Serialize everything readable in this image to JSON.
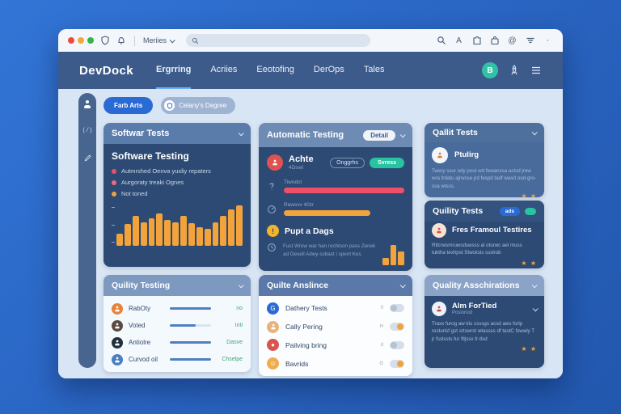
{
  "colors": {
    "accent_blue": "#2a6ad4",
    "teal": "#28c3a0",
    "orange": "#f2a33c",
    "red": "#ef5068",
    "green": "#3fa573",
    "navy_card": "#2d4a74"
  },
  "browser": {
    "menu_label": "Meriies",
    "search_placeholder": ""
  },
  "nav": {
    "logo": "DevDock",
    "tabs": [
      {
        "label": "Ergrring",
        "active": true
      },
      {
        "label": "Acriies",
        "active": false
      },
      {
        "label": "Eeotofing",
        "active": false
      },
      {
        "label": "DerOps",
        "active": false
      },
      {
        "label": "Tales",
        "active": false
      }
    ],
    "avatar_initial": "B"
  },
  "filters": {
    "primary_label": "Farb Arts",
    "secondary_label": "Celany's Degree"
  },
  "cards": {
    "software_tests": {
      "header": "Softwar Tests",
      "title": "Software Testing",
      "legend": [
        {
          "label": "Autmrshed Oenva yusliy repaters",
          "color": "#ef5068"
        },
        {
          "label": "Aurgoraty treaki Ognes",
          "color": "#f06a7e"
        },
        {
          "label": "Not toned",
          "color": "#f2a33c"
        }
      ],
      "chart_data": {
        "type": "bar",
        "values": [
          28,
          52,
          72,
          56,
          66,
          76,
          62,
          56,
          72,
          54,
          44,
          40,
          56,
          72,
          86,
          96
        ],
        "color": "#f2a33c"
      }
    },
    "automatic_testing": {
      "header": "Automatic Testing",
      "detail_label": "Detail",
      "user": {
        "name": "Achte",
        "sub": "4Dswt"
      },
      "status_pills": {
        "outline": "Onggrhs",
        "teal": "Svress"
      },
      "progress": [
        {
          "label": "Tiwodct",
          "value": 100,
          "color": "#ef5068"
        },
        {
          "label": "Rewsvv 40zr",
          "value": 72,
          "color": "#f2a33c"
        }
      ],
      "alert_label": "Pupt a Dags",
      "note": "Fust Wrow war han rechtson pass Zenek ad Gesell Adwy-scbast i spent Kes",
      "mini_chart": {
        "type": "bar",
        "values": [
          32,
          88,
          62
        ],
        "color": "#f2a33c"
      }
    },
    "quality_tests_top": {
      "header": "Qallit Tests",
      "name": "Ptulirg",
      "text": "Twery ssur ody pout wrt fewanssa actsd jrew wra frdatu ajrwsse jrd fespd tadf wasrt ood gro-ssa wtsss.",
      "stars": "★ ★"
    },
    "quality_tests_mid": {
      "header": "Quility Tests",
      "badge_label": "ads",
      "name": "Fres Framoul Testires",
      "text": "Rtlcrwsmruwsdswsss al oturwc ael muss tuktha texhpst Stwcksis ssslrob",
      "stars": "★ ★"
    },
    "quality_assurations": {
      "header": "Quality Asschirations",
      "name": "Alm ForTied",
      "sub": "Posionod",
      "text": "Traxx furog aw klu csssgs acsd aws forlp resturlsf gst srtswrst wtassss df tastC fswwly T jr fsslssts fur fltjssx fr-tlsd",
      "stars": "★ ★"
    },
    "quality_testing": {
      "header": "Quility Testing",
      "rows": [
        {
          "name": "RabOty",
          "value": "no",
          "progress": 100,
          "avatar_color": "#e8833a"
        },
        {
          "name": "Voted",
          "value": "Inti",
          "progress": 62,
          "avatar_color": "#5a4a42"
        },
        {
          "name": "Antiolre",
          "value": "Dasve",
          "progress": 100,
          "avatar_color": "#23303f"
        },
        {
          "name": "Curvod oil",
          "value": "Chselpe",
          "progress": 100,
          "avatar_color": "#4a7fc1"
        }
      ]
    },
    "quality_assurance": {
      "header": "Quilte Anslince",
      "rows": [
        {
          "label": "Dathery Tests",
          "prefix": "0",
          "state": "off",
          "icon_color": "#2a6ad4"
        },
        {
          "label": "Cally Pering",
          "prefix": "H",
          "state": "on",
          "icon_color": "#e8b27d"
        },
        {
          "label": "Pailving bring",
          "prefix": "d",
          "state": "off",
          "icon_color": "#d9534f"
        },
        {
          "label": "Bavrids",
          "prefix": "G",
          "state": "on",
          "icon_color": "#f0ad4e"
        }
      ]
    }
  }
}
